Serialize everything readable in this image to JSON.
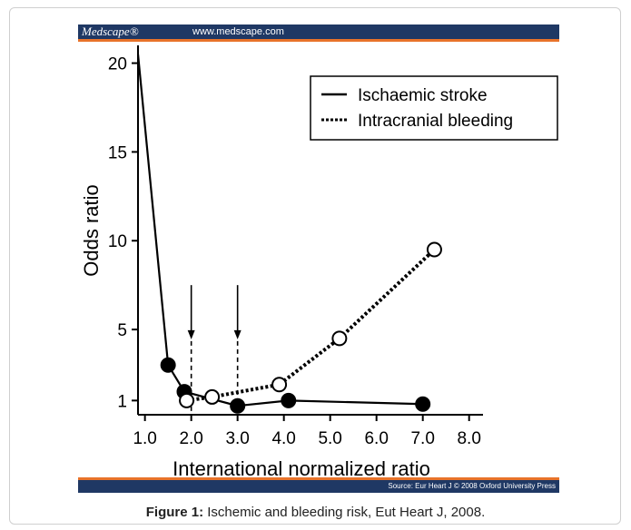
{
  "header": {
    "brand": "Medscape®",
    "url": "www.medscape.com"
  },
  "footer": {
    "source": "Source: Eur Heart J © 2008 Oxford University Press"
  },
  "caption": {
    "label": "Figure 1:",
    "text": " Ischemic and bleeding risk, Eut Heart J, 2008."
  },
  "chart_data": {
    "type": "line",
    "xlabel": "International normalized ratio",
    "ylabel": "Odds ratio",
    "xlim": [
      0.85,
      8.3
    ],
    "ylim": [
      0.2,
      21
    ],
    "xticks": [
      1.0,
      2.0,
      3.0,
      4.0,
      5.0,
      6.0,
      7.0,
      8.0
    ],
    "xtick_labels": [
      "1.0",
      "2.0",
      "3.0",
      "4.0",
      "5.0",
      "6.0",
      "7.0",
      "8.0"
    ],
    "yticks": [
      1,
      5,
      10,
      15,
      20
    ],
    "ytick_labels": [
      "1",
      "5",
      "10",
      "15",
      "20"
    ],
    "legend_position": "top-right",
    "grid": false,
    "series": [
      {
        "name": "Ischaemic stroke",
        "style": "solid",
        "marker": "filled-circle",
        "x": [
          0.85,
          1.5,
          1.85,
          3.0,
          4.1,
          7.0
        ],
        "y": [
          20.5,
          3.0,
          1.5,
          0.7,
          1.0,
          0.8
        ]
      },
      {
        "name": "Intracranial bleeding",
        "style": "dotted",
        "marker": "open-circle",
        "x": [
          1.9,
          2.45,
          3.9,
          5.2,
          7.25
        ],
        "y": [
          1.0,
          1.2,
          1.9,
          4.5,
          9.5
        ]
      }
    ],
    "markers_first_point_visible": [
      false,
      true
    ],
    "annotations": [
      {
        "type": "arrow-dashed",
        "x": 2.0,
        "y_top": 7.5,
        "y_arrow": 4.5
      },
      {
        "type": "arrow-dashed",
        "x": 3.0,
        "y_top": 7.5,
        "y_arrow": 4.5
      }
    ]
  }
}
